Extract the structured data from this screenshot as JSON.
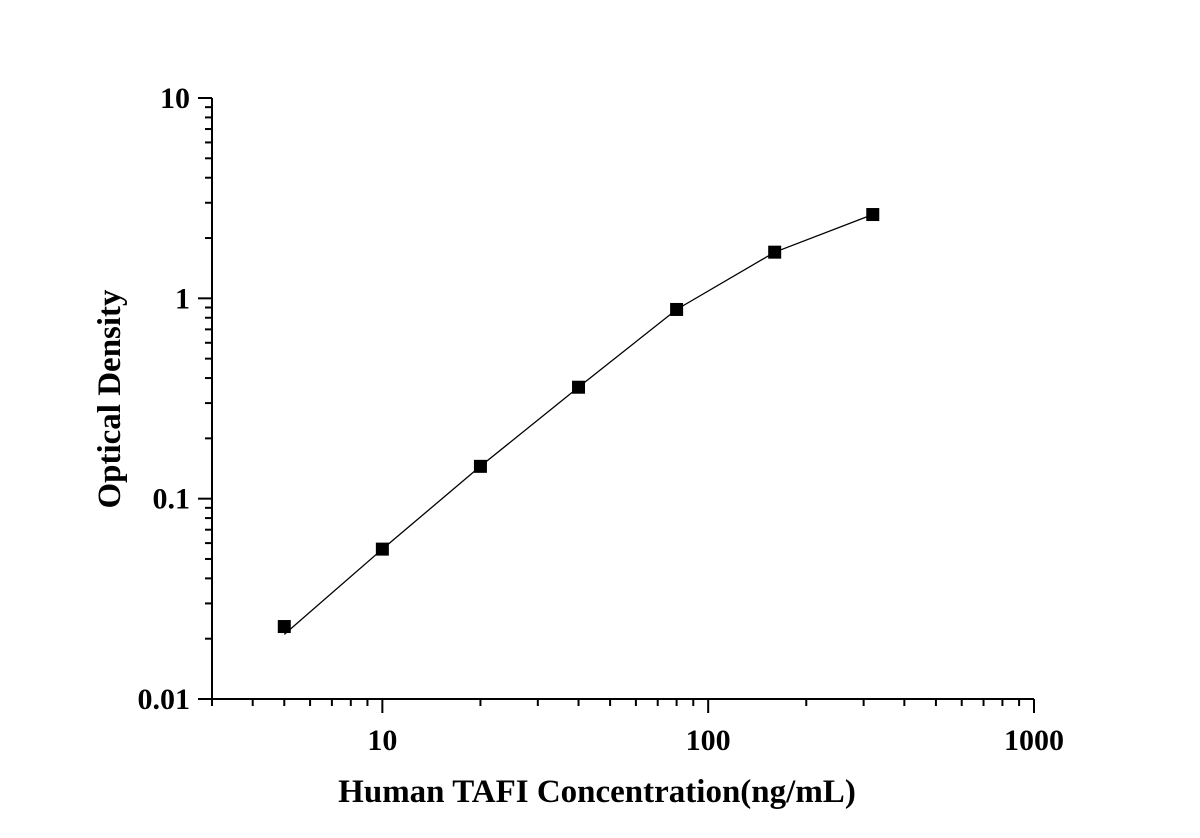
{
  "chart_data": {
    "type": "scatter",
    "title": "",
    "xlabel": "Human TAFI Concentration(ng/mL)",
    "ylabel": "Optical Density",
    "x_scale": "log",
    "y_scale": "log",
    "xlim": [
      3,
      1000
    ],
    "ylim": [
      0.01,
      10
    ],
    "x_ticks": [
      10,
      100,
      1000
    ],
    "x_tick_labels": [
      "10",
      "100",
      "1000"
    ],
    "y_ticks": [
      0.01,
      0.1,
      1,
      10
    ],
    "y_tick_labels": [
      "0.01",
      "0.1",
      "1",
      "10"
    ],
    "grid": false,
    "legend": false,
    "series": [
      {
        "marker": "square",
        "color": "#000000",
        "x": [
          5,
          10,
          20,
          40,
          80,
          160,
          320
        ],
        "y": [
          0.023,
          0.056,
          0.145,
          0.36,
          0.88,
          1.7,
          2.62
        ]
      }
    ],
    "fit_curve": {
      "color": "#000000",
      "x": [
        5,
        10,
        20,
        40,
        80,
        160,
        320
      ],
      "y": [
        0.021,
        0.056,
        0.145,
        0.36,
        0.88,
        1.7,
        2.62
      ]
    }
  }
}
